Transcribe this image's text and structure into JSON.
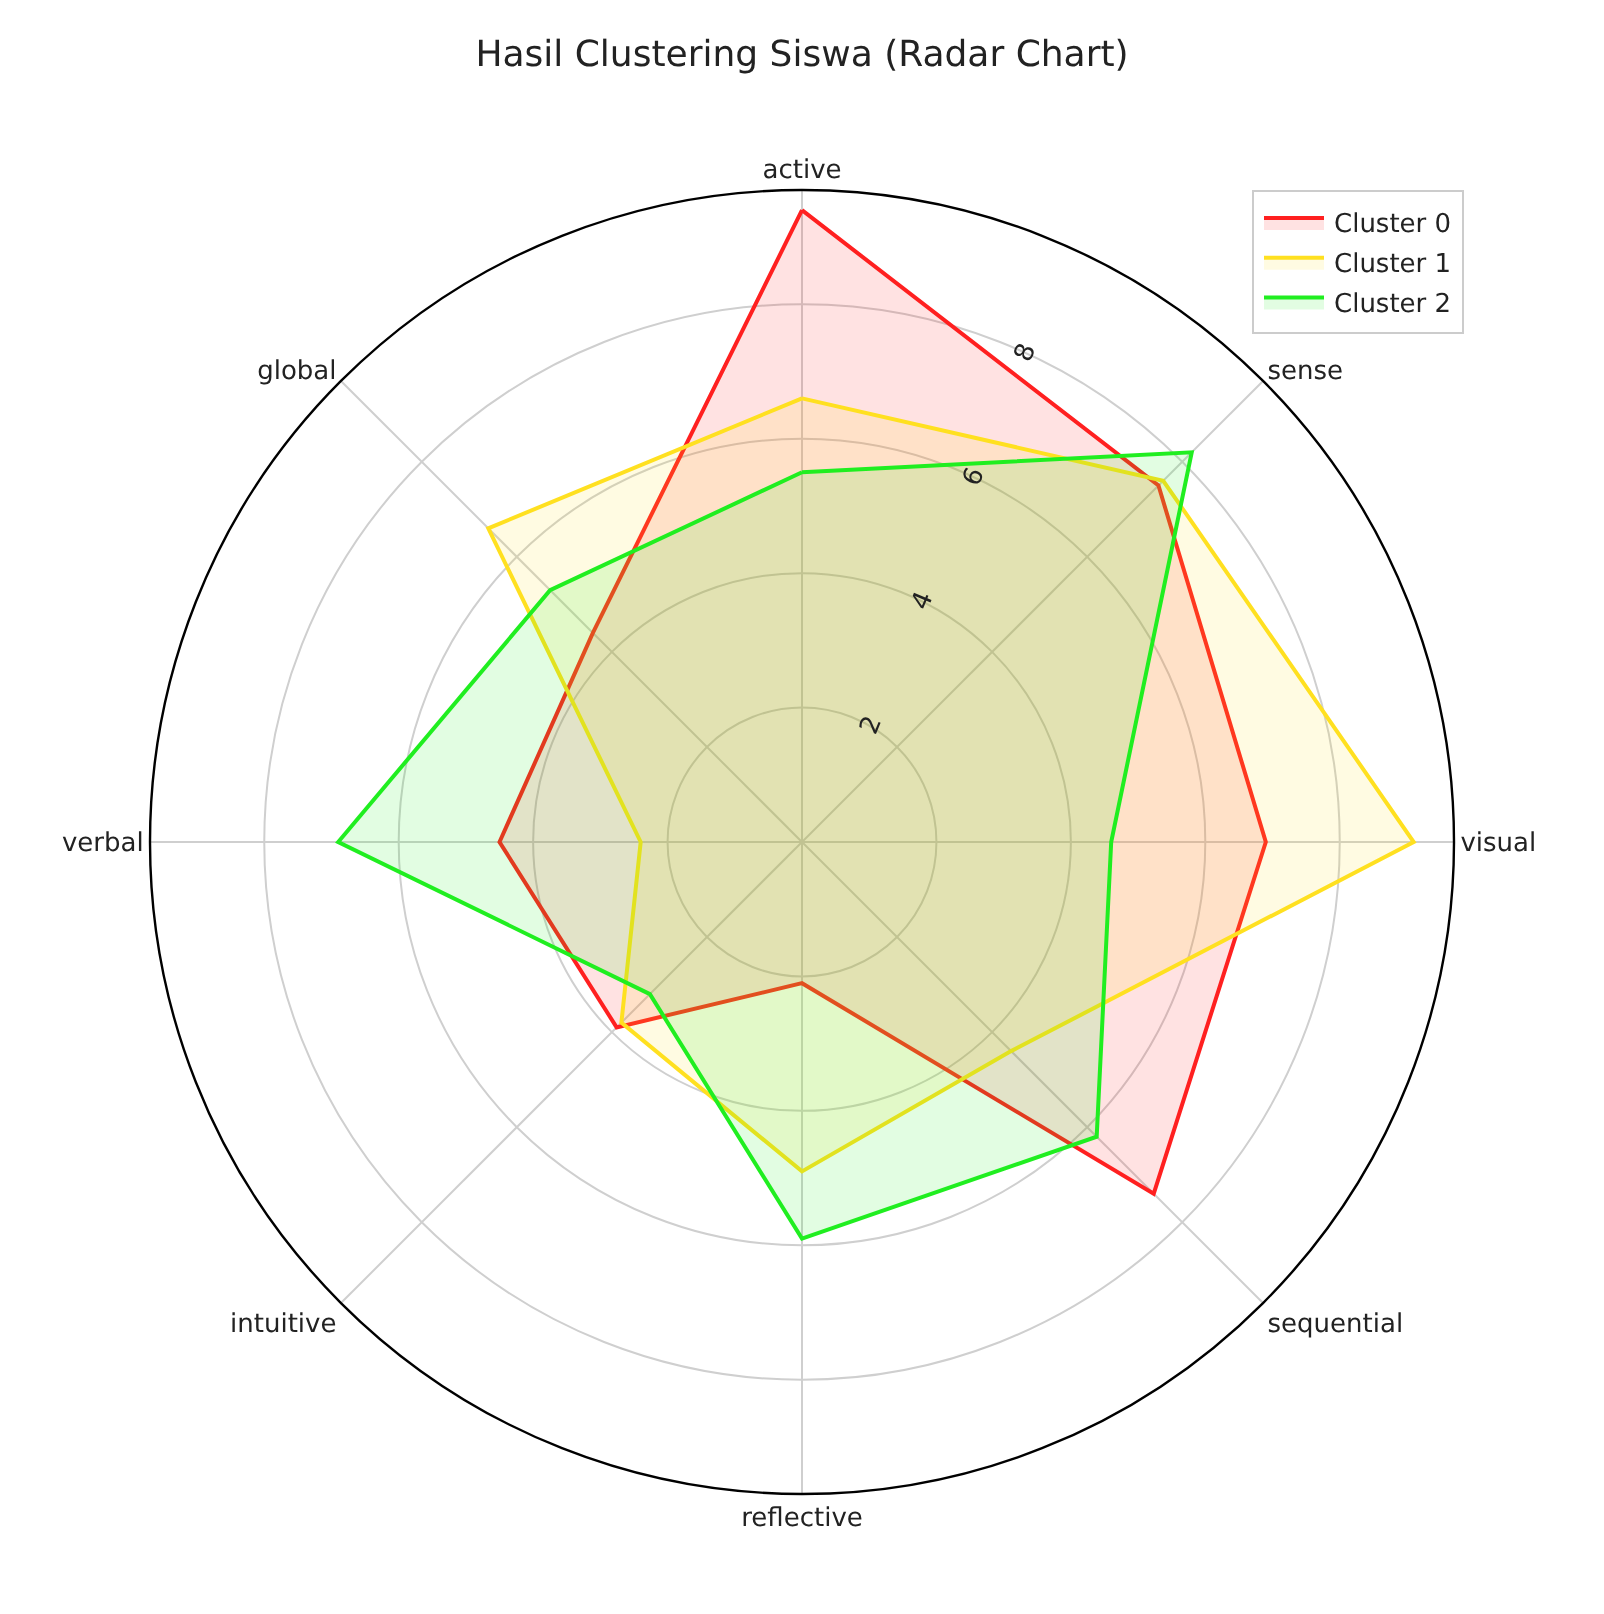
{
  "chart_data": {
    "type": "radar",
    "title": "Hasil Clustering Siswa (Radar Chart)",
    "categories": [
      "active",
      "sense",
      "visual",
      "sequential",
      "reflective",
      "intuitive",
      "verbal",
      "global"
    ],
    "series": [
      {
        "name": "Cluster 0",
        "color": "#ff2020",
        "values": [
          9.4,
          7.5,
          6.9,
          7.4,
          2.1,
          3.9,
          4.5,
          4.4
        ]
      },
      {
        "name": "Cluster 1",
        "color": "#ffe020",
        "values": [
          6.6,
          7.6,
          9.1,
          4.4,
          4.9,
          3.8,
          2.4,
          6.6
        ]
      },
      {
        "name": "Cluster 2",
        "color": "#20ee20",
        "values": [
          5.5,
          8.2,
          4.6,
          6.2,
          5.9,
          3.2,
          6.9,
          5.3
        ]
      }
    ],
    "ylim": [
      0,
      9.7
    ],
    "yticks": [
      2,
      4,
      6,
      8
    ],
    "grid": true,
    "legend": "top right",
    "marker": "none",
    "line_style": "solid"
  }
}
